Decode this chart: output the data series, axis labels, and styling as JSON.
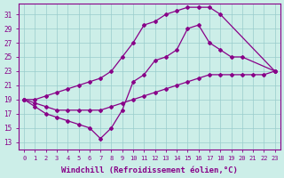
{
  "bg_color": "#cceee8",
  "line_color": "#880088",
  "grid_color": "#99cccc",
  "xlabel": "Windchill (Refroidissement éolien,°C)",
  "xlabel_fontsize": 6.5,
  "ylabel_values": [
    13,
    15,
    17,
    19,
    21,
    23,
    25,
    27,
    29,
    31
  ],
  "xlabel_values": [
    0,
    1,
    2,
    3,
    4,
    5,
    6,
    7,
    8,
    9,
    10,
    11,
    12,
    13,
    14,
    15,
    16,
    17,
    18,
    19,
    20,
    21,
    22,
    23
  ],
  "xlim": [
    -0.5,
    23.5
  ],
  "ylim": [
    12.0,
    32.5
  ],
  "line1_x": [
    0,
    1,
    2,
    3,
    4,
    5,
    6,
    7,
    8,
    9,
    10,
    11,
    12,
    13,
    14,
    15,
    16,
    17,
    18,
    23
  ],
  "line1_y": [
    19,
    19,
    19.5,
    20,
    20.5,
    21,
    21.5,
    22,
    23,
    25,
    27,
    29.5,
    30,
    31,
    31.5,
    32,
    32,
    32,
    31,
    23
  ],
  "line2_x": [
    0,
    1,
    2,
    3,
    4,
    5,
    6,
    7,
    8,
    9,
    10,
    11,
    12,
    13,
    14,
    15,
    16,
    17,
    18,
    19,
    20,
    23
  ],
  "line2_y": [
    19,
    18,
    17,
    16.5,
    16,
    15.5,
    15,
    13.5,
    15,
    17.5,
    21.5,
    22.5,
    24.5,
    25,
    26,
    29,
    29.5,
    27,
    26,
    25,
    25,
    23
  ],
  "line3_x": [
    0,
    1,
    2,
    3,
    4,
    5,
    6,
    7,
    8,
    9,
    10,
    11,
    12,
    13,
    14,
    15,
    16,
    17,
    18,
    19,
    20,
    21,
    22,
    23
  ],
  "line3_y": [
    19,
    18.5,
    18,
    17.5,
    17.5,
    17.5,
    17.5,
    17.5,
    18,
    18.5,
    19,
    19.5,
    20,
    20.5,
    21,
    21.5,
    22,
    22.5,
    22.5,
    22.5,
    22.5,
    22.5,
    22.5,
    23
  ]
}
